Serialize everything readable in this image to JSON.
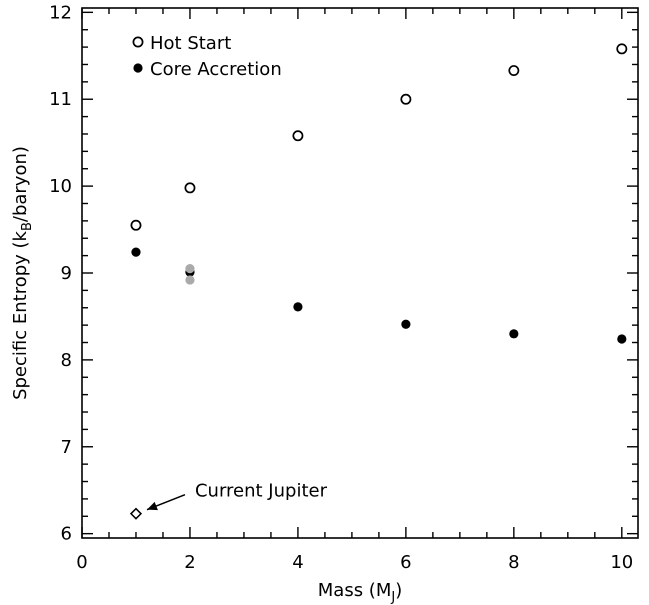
{
  "chart_data": {
    "type": "scatter",
    "xlabel": "Mass (M",
    "xlabel_sub": "J",
    "xlabel_tail": ")",
    "ylabel": "Specific Entropy (k",
    "ylabel_sub": "B",
    "ylabel_tail": "/baryon)",
    "xlim": [
      0,
      10.3
    ],
    "ylim": [
      5.95,
      12.05
    ],
    "xticks": [
      0,
      2,
      4,
      6,
      8,
      10
    ],
    "yticks": [
      6,
      7,
      8,
      9,
      10,
      11,
      12
    ],
    "xtick_labels": [
      "0",
      "2",
      "4",
      "6",
      "8",
      "10"
    ],
    "ytick_labels": [
      "6",
      "7",
      "8",
      "9",
      "10",
      "11",
      "12"
    ],
    "x_minor_step": 0.5,
    "y_minor_step": 0.2,
    "legend_placement": "top-left",
    "series": [
      {
        "name": "Hot Start",
        "marker": "open-circle",
        "color": "#000000",
        "x": [
          1,
          2,
          4,
          6,
          8,
          10
        ],
        "y": [
          9.55,
          9.98,
          10.58,
          11.0,
          11.33,
          11.58
        ]
      },
      {
        "name": "Core Accretion",
        "marker": "filled-circle",
        "color": "#000000",
        "x": [
          1,
          2,
          4,
          6,
          8,
          10
        ],
        "y": [
          9.24,
          9.01,
          8.61,
          8.41,
          8.3,
          8.24
        ]
      },
      {
        "marker": "filled-circle",
        "color": "#aaaaaa",
        "x": [
          2,
          2
        ],
        "y": [
          9.05,
          8.92
        ]
      }
    ],
    "annotations": [
      {
        "text": "Current Jupiter",
        "marker": "open-diamond",
        "x": 1,
        "y": 6.23,
        "arrow": true
      }
    ]
  }
}
